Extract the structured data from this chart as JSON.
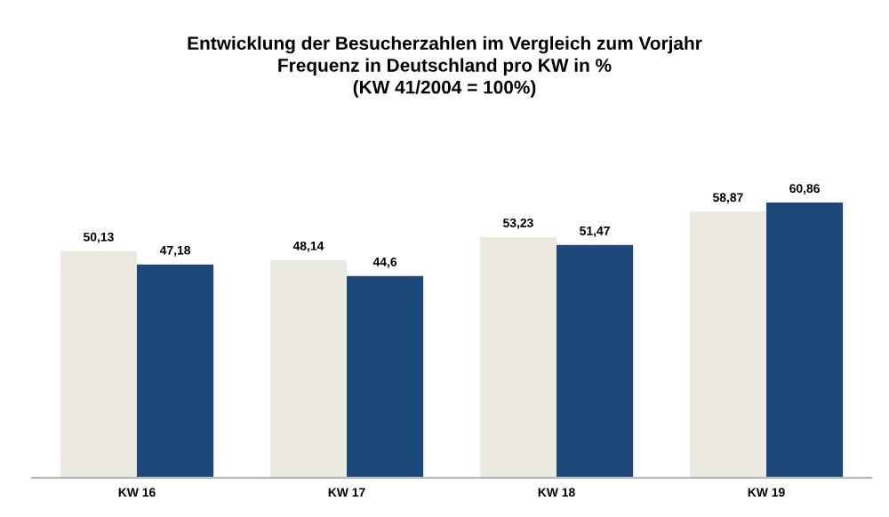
{
  "chart_data": {
    "type": "bar",
    "title": "Entwicklung der Besucherzahlen im Vergleich zum Vorjahr\nFrequenz in Deutschland pro KW in %\n(KW 41/2004 = 100%)",
    "categories": [
      "KW 16",
      "KW 17",
      "KW 18",
      "KW 19"
    ],
    "series": [
      {
        "color": "#ece9e1",
        "values": [
          50.13,
          48.14,
          53.23,
          58.87
        ],
        "value_labels": [
          "50,13",
          "48,14",
          "53,23",
          "58,87"
        ]
      },
      {
        "color": "#1b4879",
        "values": [
          47.18,
          44.6,
          51.47,
          60.86
        ],
        "value_labels": [
          "47,18",
          "44,6",
          "51,47",
          "60,86"
        ]
      }
    ]
  }
}
